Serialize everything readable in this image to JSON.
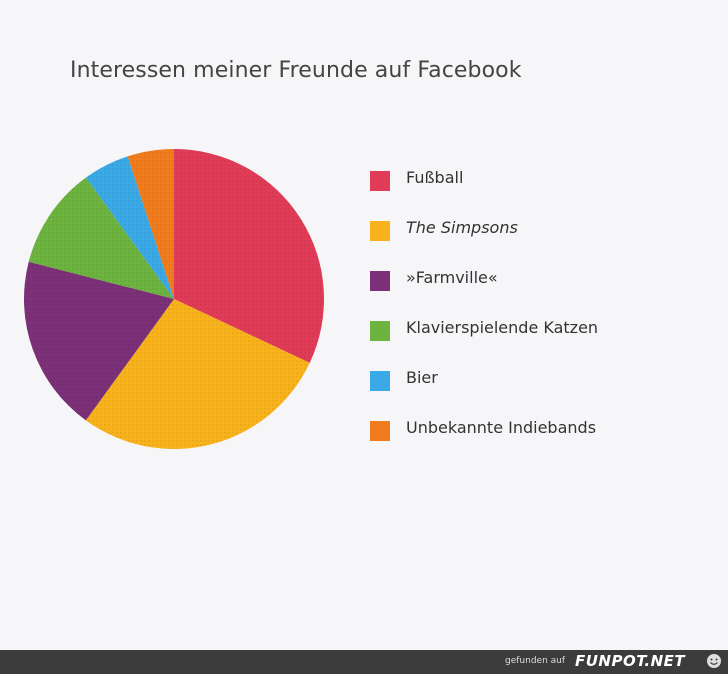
{
  "chart_data": {
    "type": "pie",
    "title": "Interessen meiner Freunde auf Facebook",
    "legend_position": "right",
    "slices": [
      {
        "label": "Fußball",
        "value": 32,
        "color": "#e03c58",
        "italic": false
      },
      {
        "label": "The Simpsons",
        "value": 28,
        "color": "#f7b21c",
        "italic": true
      },
      {
        "label": "»Farmville«",
        "value": 19,
        "color": "#7b3077",
        "italic": false
      },
      {
        "label": "Klavierspielende Katzen",
        "value": 11,
        "color": "#6db33f",
        "italic": false
      },
      {
        "label": "Bier",
        "value": 5,
        "color": "#3aa9e6",
        "italic": false
      },
      {
        "label": "Unbekannte Indiebands",
        "value": 5,
        "color": "#f07c1e",
        "italic": false
      }
    ]
  },
  "footer": {
    "text": "gefunden auf",
    "logo": "FUNPOT.NET"
  }
}
